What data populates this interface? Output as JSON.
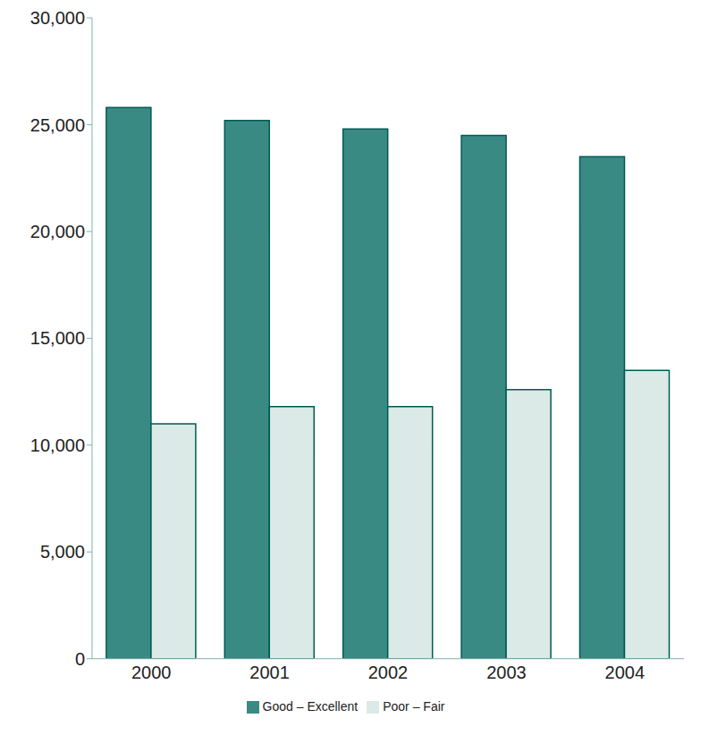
{
  "chart_data": {
    "type": "bar",
    "categories": [
      "2000",
      "2001",
      "2002",
      "2003",
      "2004"
    ],
    "series": [
      {
        "name": "Good – Excellent",
        "color": "#3a8a84",
        "values": [
          25800,
          25200,
          24800,
          24500,
          23500
        ]
      },
      {
        "name": "Poor – Fair",
        "color": "#dbe9e7",
        "values": [
          11000,
          11800,
          11800,
          12600,
          13500
        ]
      }
    ],
    "ylim": [
      0,
      30000
    ],
    "yticks": [
      0,
      {
        "value": 5000,
        "label": "5,000"
      },
      {
        "value": 10000,
        "label": "10,000"
      },
      {
        "value": 15000,
        "label": "15,000"
      },
      {
        "value": 20000,
        "label": "20,000"
      },
      {
        "value": 25000,
        "label": "25,000"
      },
      {
        "value": 30000,
        "label": "30,000"
      }
    ],
    "grid": false,
    "legend": "bottom"
  }
}
